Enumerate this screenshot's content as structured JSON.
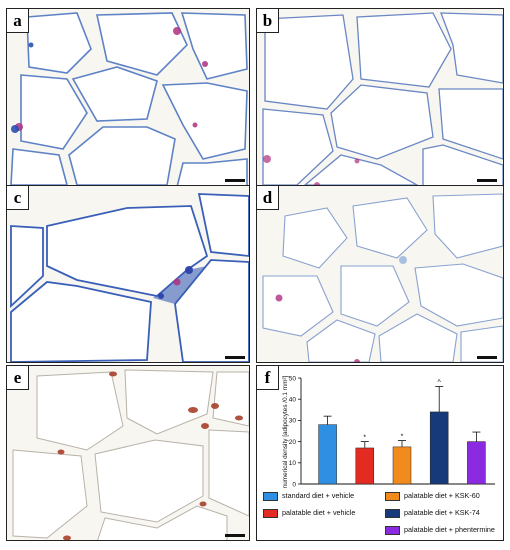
{
  "panels": {
    "a": {
      "label": "a"
    },
    "b": {
      "label": "b"
    },
    "c": {
      "label": "c"
    },
    "d": {
      "label": "d"
    },
    "e": {
      "label": "e"
    },
    "f": {
      "label": "f"
    }
  },
  "colors": {
    "tissue_bg": "#f7f6f0",
    "membrane_blue": "#3a63b8",
    "stain_magenta": "#b8307a",
    "nucleus_red": "#a8402a"
  },
  "chart_data": {
    "type": "bar",
    "title": "",
    "xlabel": "",
    "ylabel": "numerical density [adipocytes /0.1 mm²]",
    "ylim": [
      0,
      50
    ],
    "yticks": [
      0,
      10,
      20,
      30,
      40,
      50
    ],
    "categories": [
      "standard diet + vehicle",
      "palatable diet + vehicle",
      "palatable diet + KSK-60",
      "palatable diet + KSK-74",
      "palatable diet + phentermine"
    ],
    "values": [
      28,
      17,
      17.5,
      34,
      20
    ],
    "errors": [
      4,
      3,
      3,
      12,
      4.5
    ],
    "colors": [
      "#2e8fe3",
      "#e32b22",
      "#f28b1e",
      "#173a7a",
      "#8a2be2"
    ],
    "markers": [
      "",
      "*",
      "*",
      "^",
      ""
    ],
    "legend_position": "bottom"
  }
}
